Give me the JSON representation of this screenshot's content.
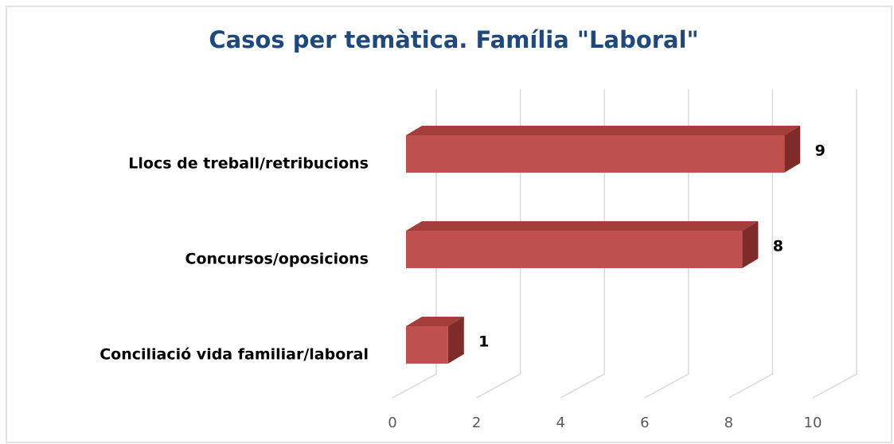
{
  "chart_data": {
    "type": "bar3d_horizontal",
    "title": "Casos per temàtica. Família \"Laboral\"",
    "categories": [
      "Llocs de treball/retribucions",
      "Concursos/oposicions",
      "Conciliació vida familiar/laboral"
    ],
    "values": [
      9,
      8,
      1
    ],
    "color": "#c0504d",
    "xlim": [
      0,
      10
    ],
    "xticks": [
      0,
      2,
      4,
      6,
      8,
      10
    ],
    "grid": true
  }
}
